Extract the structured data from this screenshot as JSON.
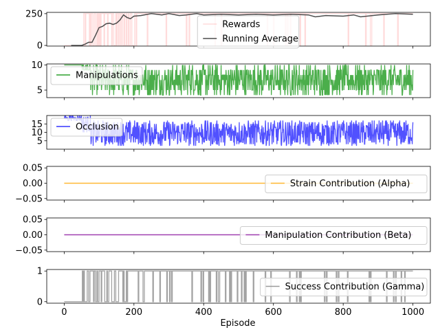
{
  "figure": {
    "xlabel": "Episode"
  },
  "colors": {
    "rewards": "#ff9999",
    "running_average": "#4d4d4d",
    "manipulations": "#2ca02c",
    "occlusion": "#3333ff",
    "strain": "#ffb732",
    "beta": "#a040b0",
    "gamma": "#999999"
  },
  "chart_data": [
    {
      "type": "line",
      "xlim": [
        -50,
        1050
      ],
      "ylim": [
        -5,
        260
      ],
      "yticks": [
        0,
        250
      ],
      "xticks": [
        0,
        200,
        400,
        600,
        800,
        1000
      ],
      "legend_placement": "bottom-center",
      "series": [
        {
          "name": "Rewards",
          "kind": "noisy-binary",
          "low": 0,
          "high": 250,
          "opacity": 0.35,
          "segments": [
            {
              "x": [
                0,
                50
              ],
              "pHigh": 0.0
            },
            {
              "x": [
                50,
                200
              ],
              "pHigh": 0.55
            },
            {
              "x": [
                200,
                300
              ],
              "pHigh": 0.93
            },
            {
              "x": [
                300,
                700
              ],
              "pHigh": 0.97
            },
            {
              "x": [
                700,
                1000
              ],
              "pHigh": 0.95
            }
          ]
        },
        {
          "name": "Running Average",
          "kind": "points",
          "points": [
            [
              20,
              0
            ],
            [
              50,
              0
            ],
            [
              60,
              10
            ],
            [
              70,
              25
            ],
            [
              80,
              25
            ],
            [
              90,
              80
            ],
            [
              100,
              140
            ],
            [
              110,
              150
            ],
            [
              120,
              170
            ],
            [
              130,
              175
            ],
            [
              140,
              165
            ],
            [
              150,
              175
            ],
            [
              160,
              200
            ],
            [
              170,
              240
            ],
            [
              180,
              220
            ],
            [
              190,
              210
            ],
            [
              200,
              230
            ],
            [
              220,
              235
            ],
            [
              250,
              250
            ],
            [
              280,
              240
            ],
            [
              300,
              250
            ],
            [
              330,
              235
            ],
            [
              350,
              240
            ],
            [
              380,
              250
            ],
            [
              400,
              240
            ],
            [
              450,
              245
            ],
            [
              500,
              240
            ],
            [
              550,
              245
            ],
            [
              600,
              240
            ],
            [
              650,
              245
            ],
            [
              700,
              240
            ],
            [
              720,
              225
            ],
            [
              750,
              235
            ],
            [
              800,
              230
            ],
            [
              830,
              240
            ],
            [
              850,
              225
            ],
            [
              900,
              240
            ],
            [
              950,
              250
            ],
            [
              1000,
              245
            ]
          ]
        }
      ]
    },
    {
      "type": "line",
      "xlim": [
        -50,
        1050
      ],
      "ylim": [
        3.5,
        10.2
      ],
      "yticks": [
        5,
        10
      ],
      "legend_placement": "upper-left",
      "series": [
        {
          "name": "Manipulations",
          "kind": "noisy-continuous",
          "opacity": 0.85,
          "segments": [
            {
              "x": [
                0,
                50
              ],
              "min": 10,
              "max": 10
            },
            {
              "x": [
                50,
                75
              ],
              "min": 9,
              "max": 10
            },
            {
              "x": [
                75,
                1000
              ],
              "min": 4,
              "max": 10
            }
          ]
        }
      ]
    },
    {
      "type": "line",
      "xlim": [
        -50,
        1050
      ],
      "ylim": [
        0,
        20
      ],
      "yticks": [
        5,
        10,
        15
      ],
      "legend_placement": "upper-left",
      "series": [
        {
          "name": "Occlusion",
          "kind": "noisy-continuous",
          "opacity": 0.85,
          "segments": [
            {
              "x": [
                0,
                50
              ],
              "min": 17,
              "max": 20
            },
            {
              "x": [
                50,
                75
              ],
              "min": 10,
              "max": 20
            },
            {
              "x": [
                75,
                1000
              ],
              "min": 2,
              "max": 17
            }
          ]
        }
      ]
    },
    {
      "type": "line",
      "xlim": [
        -50,
        1050
      ],
      "ylim": [
        -0.055,
        0.055
      ],
      "yticks": [
        -0.05,
        0.0,
        0.05
      ],
      "yticklabels": [
        "−0.05",
        "0.00",
        "0.05"
      ],
      "legend_placement": "center-right",
      "series": [
        {
          "name": "Strain Contribution (Alpha)",
          "kind": "constant",
          "value": 0,
          "x": [
            0,
            1000
          ]
        }
      ]
    },
    {
      "type": "line",
      "xlim": [
        -50,
        1050
      ],
      "ylim": [
        -0.055,
        0.055
      ],
      "yticks": [
        -0.05,
        0.0,
        0.05
      ],
      "yticklabels": [
        "−0.05",
        "0.00",
        "0.05"
      ],
      "legend_placement": "center-right",
      "series": [
        {
          "name": "Manipulation Contribution (Beta)",
          "kind": "constant",
          "value": 0,
          "x": [
            0,
            1000
          ]
        }
      ]
    },
    {
      "type": "line",
      "xlim": [
        -50,
        1050
      ],
      "ylim": [
        -0.05,
        1.05
      ],
      "yticks": [
        0,
        1
      ],
      "legend_placement": "center-right",
      "series": [
        {
          "name": "Success Contribution (Gamma)",
          "kind": "noisy-binary",
          "low": 0,
          "high": 1,
          "opacity": 0.9,
          "segments": [
            {
              "x": [
                0,
                50
              ],
              "pHigh": 0.0
            },
            {
              "x": [
                50,
                180
              ],
              "pHigh": 0.6
            },
            {
              "x": [
                180,
                350
              ],
              "pHigh": 0.9
            },
            {
              "x": [
                350,
                1000
              ],
              "pHigh": 0.92
            }
          ]
        }
      ]
    }
  ]
}
